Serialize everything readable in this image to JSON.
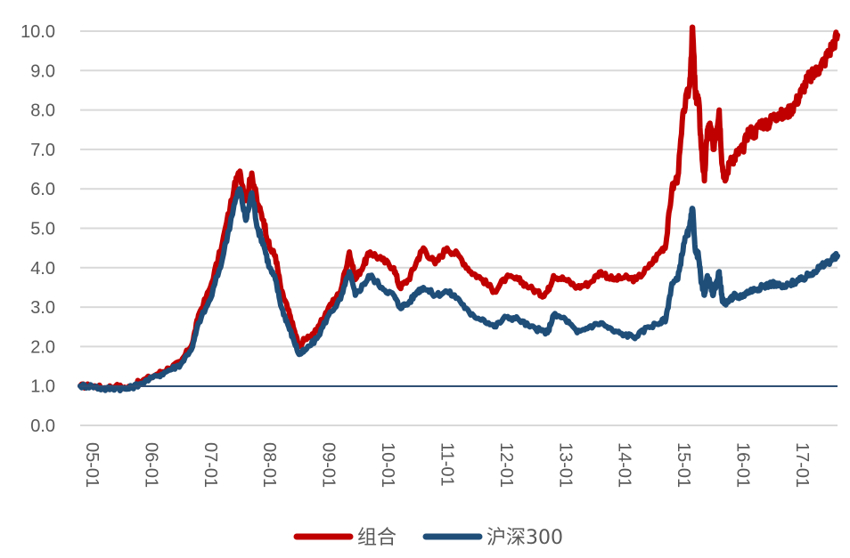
{
  "chart_data": {
    "type": "line",
    "title": "",
    "xlabel": "",
    "ylabel": "",
    "ylim": [
      0,
      10
    ],
    "yticks": [
      "0.0",
      "1.0",
      "2.0",
      "3.0",
      "4.0",
      "5.0",
      "6.0",
      "7.0",
      "8.0",
      "9.0",
      "10.0"
    ],
    "xlim": [
      2005.0,
      2017.8
    ],
    "xticks": [
      "05-01",
      "06-01",
      "07-01",
      "08-01",
      "09-01",
      "10-01",
      "11-01",
      "12-01",
      "13-01",
      "14-01",
      "15-01",
      "16-01",
      "17-01"
    ],
    "grid": true,
    "legend_position": "bottom",
    "series": [
      {
        "name": "组合",
        "color": "#c00000",
        "x": [
          2005.0,
          2005.2,
          2005.4,
          2005.6,
          2005.8,
          2006.0,
          2006.3,
          2006.5,
          2006.7,
          2006.9,
          2007.0,
          2007.2,
          2007.4,
          2007.6,
          2007.7,
          2007.8,
          2007.9,
          2008.0,
          2008.1,
          2008.2,
          2008.3,
          2008.4,
          2008.5,
          2008.6,
          2008.7,
          2008.8,
          2009.0,
          2009.2,
          2009.4,
          2009.55,
          2009.65,
          2009.8,
          2009.9,
          2010.1,
          2010.3,
          2010.4,
          2010.55,
          2010.7,
          2010.8,
          2011.0,
          2011.2,
          2011.4,
          2011.6,
          2011.8,
          2012.0,
          2012.2,
          2012.4,
          2012.6,
          2012.8,
          2012.9,
          2013.0,
          2013.2,
          2013.4,
          2013.6,
          2013.8,
          2014.0,
          2014.2,
          2014.4,
          2014.6,
          2014.8,
          2014.9,
          2015.0,
          2015.1,
          2015.2,
          2015.3,
          2015.35,
          2015.4,
          2015.45,
          2015.5,
          2015.55,
          2015.6,
          2015.65,
          2015.7,
          2015.75,
          2015.8,
          2015.85,
          2015.9,
          2016.0,
          2016.05,
          2016.1,
          2016.2,
          2016.3,
          2016.4,
          2016.5,
          2016.6,
          2016.7,
          2016.8,
          2016.9,
          2017.0,
          2017.1,
          2017.2,
          2017.3,
          2017.4,
          2017.5,
          2017.6,
          2017.7,
          2017.8
        ],
        "values": [
          1.0,
          1.0,
          0.95,
          1.0,
          0.95,
          1.1,
          1.3,
          1.45,
          1.6,
          2.1,
          2.8,
          3.5,
          4.6,
          6.0,
          6.45,
          5.7,
          6.4,
          5.6,
          5.2,
          4.5,
          4.3,
          3.4,
          3.0,
          2.5,
          2.0,
          2.2,
          2.4,
          3.0,
          3.4,
          4.4,
          3.7,
          4.1,
          4.4,
          4.2,
          4.0,
          3.5,
          3.7,
          4.2,
          4.5,
          4.1,
          4.5,
          4.3,
          3.9,
          3.7,
          3.4,
          3.75,
          3.7,
          3.5,
          3.3,
          3.4,
          3.8,
          3.7,
          3.5,
          3.6,
          3.9,
          3.7,
          3.75,
          3.7,
          4.0,
          4.4,
          4.6,
          6.0,
          6.3,
          8.0,
          8.6,
          10.1,
          8.3,
          8.3,
          7.0,
          6.2,
          7.5,
          7.6,
          7.0,
          7.5,
          8.0,
          6.6,
          6.2,
          6.8,
          6.7,
          6.9,
          7.0,
          7.5,
          7.4,
          7.7,
          7.6,
          7.8,
          7.9,
          7.85,
          8.0,
          8.2,
          8.5,
          8.8,
          8.9,
          9.1,
          9.3,
          9.6,
          9.9
        ]
      },
      {
        "name": "沪深300",
        "color": "#1f4e79",
        "x": [
          2005.0,
          2005.2,
          2005.4,
          2005.6,
          2005.8,
          2006.0,
          2006.3,
          2006.5,
          2006.7,
          2006.9,
          2007.0,
          2007.2,
          2007.4,
          2007.6,
          2007.7,
          2007.8,
          2007.9,
          2008.0,
          2008.1,
          2008.2,
          2008.3,
          2008.4,
          2008.5,
          2008.6,
          2008.7,
          2008.8,
          2009.0,
          2009.2,
          2009.4,
          2009.55,
          2009.65,
          2009.8,
          2009.9,
          2010.1,
          2010.3,
          2010.4,
          2010.55,
          2010.7,
          2010.8,
          2011.0,
          2011.2,
          2011.4,
          2011.6,
          2011.8,
          2012.0,
          2012.2,
          2012.4,
          2012.6,
          2012.8,
          2012.9,
          2013.0,
          2013.2,
          2013.4,
          2013.6,
          2013.8,
          2014.0,
          2014.2,
          2014.4,
          2014.6,
          2014.8,
          2014.9,
          2015.0,
          2015.1,
          2015.2,
          2015.3,
          2015.35,
          2015.4,
          2015.45,
          2015.5,
          2015.55,
          2015.6,
          2015.65,
          2015.7,
          2015.75,
          2015.8,
          2015.85,
          2015.9,
          2016.0,
          2016.05,
          2016.1,
          2016.2,
          2016.3,
          2016.4,
          2016.5,
          2016.6,
          2016.7,
          2016.8,
          2016.9,
          2017.0,
          2017.1,
          2017.2,
          2017.3,
          2017.4,
          2017.5,
          2017.6,
          2017.7,
          2017.8
        ],
        "values": [
          1.0,
          1.0,
          0.92,
          0.95,
          0.92,
          1.05,
          1.25,
          1.4,
          1.55,
          2.0,
          2.6,
          3.2,
          4.2,
          5.6,
          6.0,
          5.2,
          5.9,
          5.0,
          4.6,
          4.0,
          3.7,
          3.0,
          2.6,
          2.2,
          1.8,
          1.9,
          2.2,
          2.8,
          3.2,
          3.9,
          3.3,
          3.6,
          3.8,
          3.5,
          3.3,
          3.0,
          3.1,
          3.4,
          3.5,
          3.3,
          3.4,
          3.2,
          2.8,
          2.7,
          2.5,
          2.75,
          2.7,
          2.5,
          2.4,
          2.35,
          2.8,
          2.7,
          2.35,
          2.5,
          2.6,
          2.4,
          2.3,
          2.25,
          2.5,
          2.6,
          2.7,
          3.6,
          3.7,
          4.6,
          5.0,
          5.5,
          4.4,
          4.3,
          3.6,
          3.3,
          3.8,
          3.6,
          3.3,
          3.6,
          3.9,
          3.2,
          3.1,
          3.2,
          3.3,
          3.25,
          3.3,
          3.4,
          3.45,
          3.5,
          3.55,
          3.6,
          3.55,
          3.5,
          3.6,
          3.65,
          3.7,
          3.8,
          3.9,
          4.0,
          4.1,
          4.2,
          4.3
        ]
      }
    ]
  }
}
